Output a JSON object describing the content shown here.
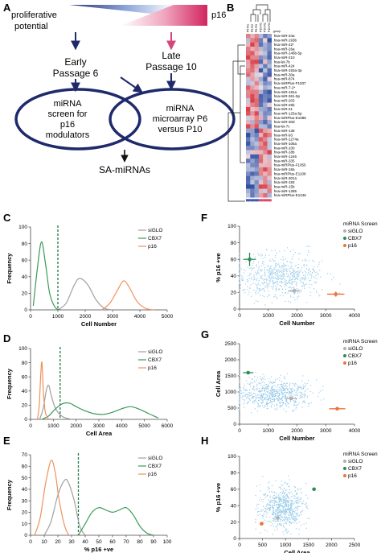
{
  "panels": {
    "A": "A",
    "B": "B",
    "C": "C",
    "D": "D",
    "E": "E",
    "F": "F",
    "G": "G",
    "H": "H"
  },
  "panel_a": {
    "proliferative": "proliferative",
    "potential": "potential",
    "p16": "p16",
    "early1": "Early",
    "early2": "Passage 6",
    "late1": "Late",
    "late2": "Passage 10",
    "left_circle": [
      "miRNA",
      "screen for",
      "p16",
      "modulators"
    ],
    "right_circle": [
      "miRNA",
      "microarray P6",
      "versus P10"
    ],
    "output": "SA-miRNAs",
    "colors": {
      "navy": "#1f2a6b",
      "pink": "#d6457a"
    }
  },
  "heatmap": {
    "col_headers": [
      "P6 R1",
      "P6 R2",
      "P6 R3",
      "P10 R1",
      "P10 R2",
      "P10 R3"
    ],
    "group_label": "group",
    "rows": [
      "hsa-miR-34a",
      "hsa-miR-193b",
      "hsa-miR-22*",
      "hsa-miR-26a",
      "hsa-miR-146b-5p",
      "hsa-miR-210",
      "hsa-let-7b",
      "hsa-miR-424",
      "hsa-miR-193a-3p",
      "hsa-miR-30a",
      "hsa-miR-874",
      "hsa-miRPlus-F1037",
      "hsa-miR-7-2*",
      "hsa-miR-181a",
      "hsa-miR-361-5p",
      "hsa-miR-203",
      "hsa-miR-26b",
      "hsa-miR-21",
      "hsa-miR-125a-5p",
      "hsa-miRPlus-E1088",
      "hsa-miR-30d",
      "hsa-let-7c",
      "hsa-miR-138",
      "hsa-miR-93",
      "hsa-miR-1274a",
      "hsa-miR-106a",
      "hsa-miR-100",
      "hsa-miR-18b",
      "hsa-miR-1246",
      "hsa-miR-335",
      "hsa-miRPlus-F1055",
      "hsa-miR-18a",
      "hsa-miRPlus-E1108",
      "hsa-miR-301a",
      "hsa-miR-183",
      "hsa-miR-15b",
      "hsa-miR-1285",
      "hsa-miRPlus-E1246"
    ]
  },
  "chart_data": [
    {
      "panel": "C",
      "type": "line",
      "xlabel": "Cell Number",
      "ylabel": "Frequency",
      "xlim": [
        0,
        5000
      ],
      "ylim": [
        0,
        100
      ],
      "xticks": [
        "0",
        "1000",
        "2000",
        "3000",
        "4000",
        "5000"
      ],
      "yticks": [
        "0",
        "20",
        "40",
        "60",
        "80",
        "100"
      ],
      "threshold": 1000,
      "series": [
        {
          "name": "siGLO",
          "color": "#a0a0a0",
          "x": [
            1000,
            1300,
            1600,
            1800,
            2100,
            2400,
            2700,
            3000
          ],
          "y": [
            0,
            8,
            30,
            38,
            30,
            12,
            2,
            0
          ]
        },
        {
          "name": "CBX7",
          "color": "#3b9a57",
          "x": [
            100,
            250,
            400,
            550,
            700,
            900,
            1100
          ],
          "y": [
            5,
            50,
            82,
            55,
            20,
            3,
            0
          ]
        },
        {
          "name": "p16",
          "color": "#f0915a",
          "x": [
            2600,
            2900,
            3200,
            3400,
            3600,
            3900,
            4200,
            4500
          ],
          "y": [
            0,
            8,
            25,
            35,
            28,
            10,
            2,
            0
          ]
        }
      ]
    },
    {
      "panel": "D",
      "type": "line",
      "xlabel": "Cell Area",
      "ylabel": "Frequency",
      "xlim": [
        0,
        6000
      ],
      "ylim": [
        0,
        100
      ],
      "xticks": [
        "0",
        "1000",
        "2000",
        "3000",
        "4000",
        "5000",
        "6000"
      ],
      "yticks": [
        "0",
        "20",
        "40",
        "60",
        "80",
        "100"
      ],
      "threshold": 1300,
      "series": [
        {
          "name": "siGLO",
          "color": "#a0a0a0",
          "x": [
            400,
            550,
            700,
            800,
            900,
            1100,
            1400,
            1800
          ],
          "y": [
            0,
            15,
            42,
            48,
            35,
            15,
            4,
            0
          ]
        },
        {
          "name": "CBX7",
          "color": "#3b9a57",
          "x": [
            500,
            800,
            1100,
            1400,
            1700,
            2000,
            2400,
            2800,
            3200,
            3600,
            4000,
            4400,
            4800,
            5200,
            5600
          ],
          "y": [
            0,
            5,
            15,
            22,
            23,
            18,
            12,
            8,
            7,
            10,
            15,
            18,
            14,
            8,
            2
          ]
        },
        {
          "name": "p16",
          "color": "#f0915a",
          "x": [
            300,
            380,
            450,
            500,
            560,
            650,
            800
          ],
          "y": [
            0,
            20,
            65,
            80,
            40,
            10,
            0
          ]
        }
      ]
    },
    {
      "panel": "E",
      "type": "line",
      "xlabel": "% p16 +ve",
      "ylabel": "Frequency",
      "xlim": [
        0,
        100
      ],
      "ylim": [
        0,
        70
      ],
      "xticks": [
        "0",
        "10",
        "20",
        "30",
        "40",
        "50",
        "60",
        "70",
        "80",
        "90",
        "100"
      ],
      "yticks": [
        "0",
        "10",
        "20",
        "30",
        "40",
        "50",
        "60",
        "70"
      ],
      "threshold": 35,
      "series": [
        {
          "name": "siGLO",
          "color": "#a0a0a0",
          "x": [
            10,
            15,
            20,
            25,
            28,
            32,
            36,
            40
          ],
          "y": [
            0,
            12,
            35,
            48,
            45,
            30,
            8,
            0
          ]
        },
        {
          "name": "CBX7",
          "color": "#3b9a57",
          "x": [
            35,
            40,
            45,
            50,
            55,
            60,
            65,
            70,
            75,
            80,
            85,
            90
          ],
          "y": [
            0,
            10,
            20,
            24,
            22,
            20,
            22,
            24,
            18,
            8,
            2,
            0
          ]
        },
        {
          "name": "p16",
          "color": "#f0915a",
          "x": [
            3,
            7,
            11,
            15,
            18,
            21,
            25,
            28
          ],
          "y": [
            0,
            15,
            45,
            65,
            55,
            30,
            8,
            0
          ]
        }
      ]
    },
    {
      "panel": "F",
      "type": "scatter",
      "xlabel": "Cell Number",
      "ylabel": "% p16 +ve",
      "xlim": [
        0,
        4000
      ],
      "ylim": [
        0,
        100
      ],
      "xticks": [
        "0",
        "1000",
        "2000",
        "3000",
        "4000"
      ],
      "yticks": [
        "0",
        "20",
        "40",
        "60",
        "80",
        "100"
      ],
      "legend_title": "miRNA Screen",
      "legend": [
        {
          "name": "siGLO",
          "color": "#b0b0b0"
        },
        {
          "name": "CBX7",
          "color": "#2e8b57"
        },
        {
          "name": "p16",
          "color": "#e8763a"
        }
      ],
      "cloud": {
        "cx": 1400,
        "cy": 40,
        "sx": 750,
        "sy": 13,
        "n": 650,
        "xmin": 0,
        "xmax": 3800,
        "ymin": 5,
        "ymax": 80
      },
      "points": [
        {
          "name": "siGLO",
          "x": 1900,
          "y": 22,
          "ex": 200,
          "ey": 2,
          "color": "#b0b0b0"
        },
        {
          "name": "CBX7",
          "x": 350,
          "y": 60,
          "ex": 220,
          "ey": 8,
          "color": "#2e8b57"
        },
        {
          "name": "p16",
          "x": 3350,
          "y": 18,
          "ex": 300,
          "ey": 3,
          "color": "#e8763a"
        }
      ]
    },
    {
      "panel": "G",
      "type": "scatter",
      "xlabel": "Cell Number",
      "ylabel": "Cell Area",
      "xlim": [
        0,
        4000
      ],
      "ylim": [
        0,
        2500
      ],
      "xticks": [
        "0",
        "1000",
        "2000",
        "3000",
        "4000"
      ],
      "yticks": [
        "0",
        "500",
        "1000",
        "1500",
        "2000",
        "2500"
      ],
      "legend_title": "miRNA Screen",
      "legend": [
        {
          "name": "siGLO",
          "color": "#b0b0b0"
        },
        {
          "name": "CBX7",
          "color": "#2e8b57"
        },
        {
          "name": "p16",
          "color": "#e8763a"
        }
      ],
      "cloud": {
        "cx": 1200,
        "cy": 950,
        "sx": 650,
        "sy": 230,
        "n": 650,
        "xmin": 0,
        "xmax": 3600,
        "ymin": 300,
        "ymax": 2100
      },
      "points": [
        {
          "name": "siGLO",
          "x": 1800,
          "y": 800,
          "ex": 200,
          "ey": 30,
          "color": "#b0b0b0"
        },
        {
          "name": "CBX7",
          "x": 300,
          "y": 1600,
          "ex": 180,
          "ey": 30,
          "color": "#2e8b57"
        },
        {
          "name": "p16",
          "x": 3400,
          "y": 480,
          "ex": 280,
          "ey": 30,
          "color": "#e8763a"
        }
      ]
    },
    {
      "panel": "H",
      "type": "scatter",
      "xlabel": "Cell Area",
      "ylabel": "% p16 +ve",
      "xlim": [
        0,
        2500
      ],
      "ylim": [
        0,
        100
      ],
      "xticks": [
        "0",
        "500",
        "1000",
        "1500",
        "2000",
        "2500"
      ],
      "yticks": [
        "0",
        "20",
        "40",
        "60",
        "80",
        "100"
      ],
      "legend_title": "miRNA Screen",
      "legend": [
        {
          "name": "siGLO",
          "color": "#b0b0b0"
        },
        {
          "name": "CBX7",
          "color": "#2e8b57"
        },
        {
          "name": "p16",
          "color": "#e8763a"
        }
      ],
      "cloud": {
        "cx": 950,
        "cy": 38,
        "sx": 230,
        "sy": 13,
        "n": 650,
        "xmin": 350,
        "xmax": 2100,
        "ymin": 5,
        "ymax": 80
      },
      "points": [
        {
          "name": "siGLO",
          "x": 830,
          "y": 25,
          "ex": 0,
          "ey": 0,
          "color": "#b0b0b0"
        },
        {
          "name": "CBX7",
          "x": 1620,
          "y": 60,
          "ex": 0,
          "ey": 0,
          "color": "#2e8b57"
        },
        {
          "name": "p16",
          "x": 480,
          "y": 18,
          "ex": 40,
          "ey": 0,
          "color": "#e8763a"
        }
      ]
    }
  ]
}
